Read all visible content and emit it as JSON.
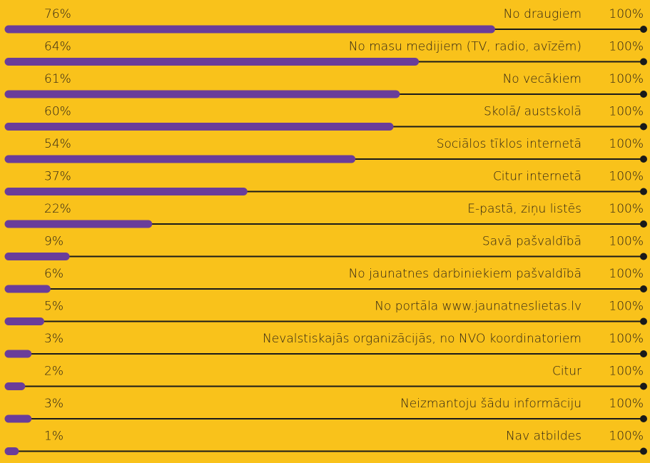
{
  "chart_data": {
    "type": "bar",
    "categories": [
      "No draugiem",
      "No masu medijiem (TV, radio, avīzēm)",
      "No vecākiem",
      "Skolā/ austskolā",
      "Sociālos tīklos internetā",
      "Citur internetā",
      "E-pastā, ziņu listēs",
      "Savā pašvaldībā",
      "No jaunatnes darbiniekiem pašvaldībā",
      "No portāla www.jaunatneslietas.lv",
      "Nevalstiskajās organizācijās, no NVO koordinatoriem",
      "Citur",
      "Neizmantoju šādu informāciju",
      "Nav atbildes"
    ],
    "values": [
      76,
      64,
      61,
      60,
      54,
      37,
      22,
      9,
      6,
      5,
      3,
      2,
      3,
      1
    ],
    "value_labels": [
      "76%",
      "64%",
      "61%",
      "60%",
      "54%",
      "37%",
      "22%",
      "9%",
      "6%",
      "5%",
      "3%",
      "2%",
      "3%",
      "1%"
    ],
    "color": "#6a3d9a",
    "xlim": [
      0,
      100
    ],
    "xticks": [
      {
        "value": 100,
        "label": "100%"
      }
    ]
  }
}
